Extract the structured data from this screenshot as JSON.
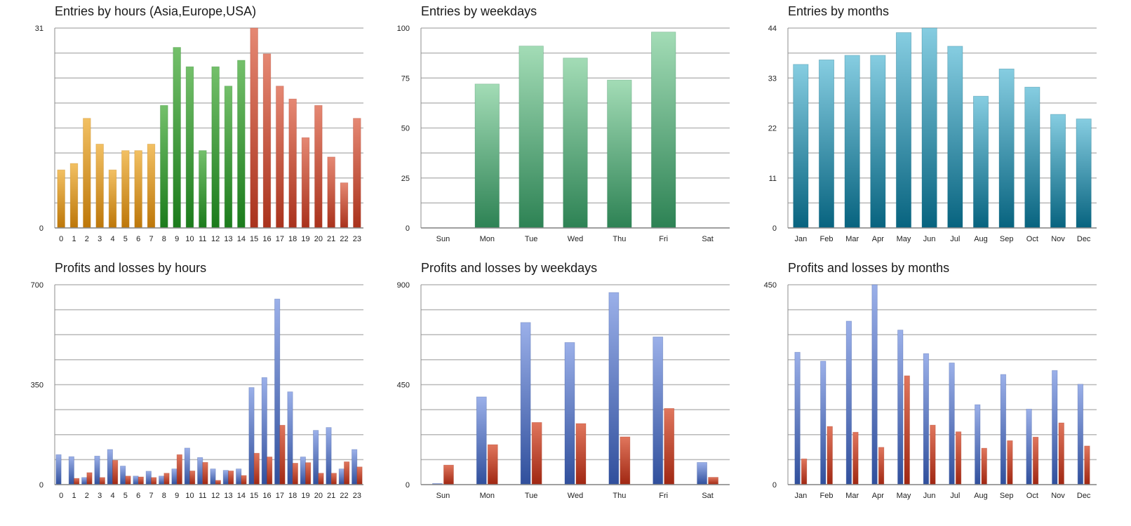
{
  "colors": {
    "grid": "#b9b9b9",
    "axis": "#8c8c8c",
    "asia": [
      "#f2c063",
      "#bd7709"
    ],
    "europe": [
      "#74c06b",
      "#1b7b1b"
    ],
    "usa": [
      "#e58873",
      "#a9321c"
    ],
    "weekdays": [
      "#a3dcb6",
      "#2d8254"
    ],
    "months": [
      "#86cde1",
      "#07637f"
    ],
    "profit": [
      "#9bb0e9",
      "#304f9c"
    ],
    "loss": [
      "#e0765d",
      "#a02712"
    ]
  },
  "chart_data": [
    {
      "type": "bar",
      "title": "Entries by hours (Asia,Europe,USA)",
      "categories": [
        "0",
        "1",
        "2",
        "3",
        "4",
        "5",
        "6",
        "7",
        "8",
        "9",
        "10",
        "11",
        "12",
        "13",
        "14",
        "15",
        "16",
        "17",
        "18",
        "19",
        "20",
        "21",
        "22",
        "23"
      ],
      "series": [
        {
          "values": [
            9,
            10,
            17,
            13,
            9,
            12,
            12,
            13,
            19,
            28,
            25,
            12,
            25,
            22,
            26,
            31,
            27,
            22,
            20,
            14,
            19,
            11,
            7,
            17
          ]
        }
      ],
      "bar_colors": [
        "asia",
        "asia",
        "asia",
        "asia",
        "asia",
        "asia",
        "asia",
        "asia",
        "europe",
        "europe",
        "europe",
        "europe",
        "europe",
        "europe",
        "europe",
        "usa",
        "usa",
        "usa",
        "usa",
        "usa",
        "usa",
        "usa",
        "usa",
        "usa"
      ],
      "ylim": [
        0,
        31
      ],
      "yticks": [
        "0",
        "31"
      ],
      "ytick_values": [
        0,
        31
      ],
      "gridlines": 8
    },
    {
      "type": "bar",
      "title": "Entries by weekdays",
      "categories": [
        "Sun",
        "Mon",
        "Tue",
        "Wed",
        "Thu",
        "Fri",
        "Sat"
      ],
      "series": [
        {
          "values": [
            0,
            72,
            91,
            85,
            74,
            98,
            0
          ]
        }
      ],
      "bar_colors": [
        "weekdays",
        "weekdays",
        "weekdays",
        "weekdays",
        "weekdays",
        "weekdays",
        "weekdays"
      ],
      "ylim": [
        0,
        100
      ],
      "yticks": [
        "0",
        "25",
        "50",
        "75",
        "100"
      ],
      "ytick_values": [
        0,
        25,
        50,
        75,
        100
      ],
      "gridlines": 8
    },
    {
      "type": "bar",
      "title": "Entries by months",
      "categories": [
        "Jan",
        "Feb",
        "Mar",
        "Apr",
        "May",
        "Jun",
        "Jul",
        "Aug",
        "Sep",
        "Oct",
        "Nov",
        "Dec"
      ],
      "series": [
        {
          "values": [
            36,
            37,
            38,
            38,
            43,
            44,
            40,
            29,
            35,
            31,
            25,
            24
          ]
        }
      ],
      "bar_colors": [
        "months",
        "months",
        "months",
        "months",
        "months",
        "months",
        "months",
        "months",
        "months",
        "months",
        "months",
        "months"
      ],
      "ylim": [
        0,
        44
      ],
      "yticks": [
        "0",
        "11",
        "22",
        "33",
        "44"
      ],
      "ytick_values": [
        0,
        11,
        22,
        33,
        44
      ],
      "gridlines": 8
    },
    {
      "type": "bar",
      "title": "Profits and losses by hours",
      "categories": [
        "0",
        "1",
        "2",
        "3",
        "4",
        "5",
        "6",
        "7",
        "8",
        "9",
        "10",
        "11",
        "12",
        "13",
        "14",
        "15",
        "16",
        "17",
        "18",
        "19",
        "20",
        "21",
        "22",
        "23"
      ],
      "series": [
        {
          "values": [
            105,
            98,
            25,
            100,
            123,
            65,
            30,
            47,
            30,
            55,
            128,
            95,
            55,
            50,
            55,
            340,
            375,
            650,
            325,
            97,
            190,
            200,
            55,
            123
          ]
        },
        {
          "values": [
            0,
            22,
            42,
            25,
            85,
            30,
            27,
            25,
            40,
            105,
            48,
            78,
            15,
            48,
            32,
            110,
            97,
            208,
            75,
            77,
            40,
            40,
            80,
            62
          ]
        }
      ],
      "series_colors": [
        "profit",
        "loss"
      ],
      "ylim": [
        0,
        700
      ],
      "yticks": [
        "0",
        "350",
        "700"
      ],
      "ytick_values": [
        0,
        350,
        700
      ],
      "gridlines": 8
    },
    {
      "type": "bar",
      "title": "Profits and losses by weekdays",
      "categories": [
        "Sun",
        "Mon",
        "Tue",
        "Wed",
        "Thu",
        "Fri",
        "Sat"
      ],
      "series": [
        {
          "values": [
            5,
            395,
            730,
            640,
            865,
            665,
            100
          ]
        },
        {
          "values": [
            88,
            180,
            280,
            275,
            215,
            343,
            33
          ]
        }
      ],
      "series_colors": [
        "profit",
        "loss"
      ],
      "ylim": [
        0,
        900
      ],
      "yticks": [
        "0",
        "450",
        "900"
      ],
      "ytick_values": [
        0,
        450,
        900
      ],
      "gridlines": 8
    },
    {
      "type": "bar",
      "title": "Profits and losses by months",
      "categories": [
        "Jan",
        "Feb",
        "Mar",
        "Apr",
        "May",
        "Jun",
        "Jul",
        "Aug",
        "Sep",
        "Oct",
        "Nov",
        "Dec"
      ],
      "series": [
        {
          "values": [
            298,
            278,
            368,
            450,
            348,
            295,
            274,
            180,
            248,
            170,
            257,
            226
          ]
        },
        {
          "values": [
            58,
            131,
            118,
            84,
            245,
            134,
            119,
            82,
            99,
            107,
            139,
            87
          ]
        }
      ],
      "series_colors": [
        "profit",
        "loss"
      ],
      "ylim": [
        0,
        450
      ],
      "yticks": [
        "0",
        "450"
      ],
      "ytick_values": [
        0,
        450
      ],
      "gridlines": 8
    }
  ]
}
